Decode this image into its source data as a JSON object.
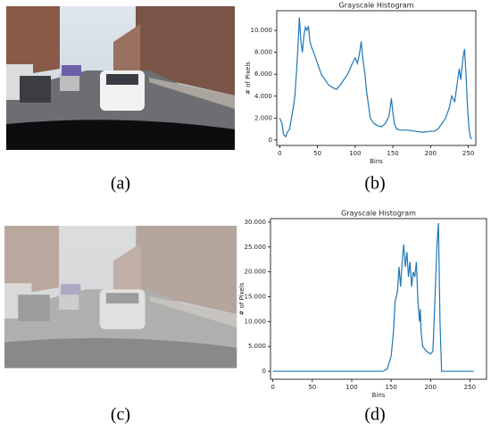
{
  "chart_data": [
    {
      "type": "line",
      "title": "Grayscale Histogram",
      "xlabel": "Bins",
      "ylabel": "# of Pixels",
      "color": "#1f77b4",
      "x": [
        0,
        3,
        5,
        8,
        10,
        13,
        15,
        18,
        20,
        22,
        24,
        26,
        28,
        30,
        32,
        34,
        36,
        38,
        40,
        42,
        45,
        50,
        55,
        60,
        65,
        70,
        75,
        80,
        85,
        90,
        95,
        100,
        103,
        106,
        108,
        110,
        113,
        115,
        118,
        120,
        125,
        130,
        135,
        140,
        145,
        148,
        150,
        152,
        155,
        160,
        170,
        180,
        190,
        200,
        205,
        210,
        215,
        220,
        225,
        228,
        232,
        235,
        238,
        240,
        243,
        245,
        247,
        249,
        251,
        253,
        255
      ],
      "y": [
        2000,
        1500,
        500,
        300,
        700,
        1000,
        1800,
        3000,
        4000,
        6000,
        8300,
        11200,
        9000,
        8000,
        9500,
        10300,
        10000,
        10400,
        9000,
        8500,
        8000,
        7000,
        6000,
        5500,
        5000,
        4800,
        4600,
        5000,
        5500,
        6000,
        6800,
        7500,
        7000,
        8000,
        9000,
        7500,
        6000,
        4500,
        3000,
        2000,
        1500,
        1300,
        1200,
        1500,
        2200,
        3800,
        2500,
        1500,
        1000,
        900,
        900,
        800,
        700,
        800,
        800,
        1000,
        1500,
        2000,
        3000,
        4000,
        3500,
        5000,
        6500,
        5500,
        7500,
        8300,
        6000,
        3000,
        1000,
        200,
        100
      ],
      "xlim": [
        -4,
        260
      ],
      "ylim": [
        -500,
        11800
      ],
      "xticks": [
        0,
        50,
        100,
        150,
        200,
        250
      ],
      "yticks": [
        0,
        {
          "value": 2000,
          "label": "2.000"
        },
        {
          "value": 4000,
          "label": "4.000"
        },
        {
          "value": 6000,
          "label": "6.000"
        },
        {
          "value": 8000,
          "label": "8.000"
        },
        {
          "value": 10000,
          "label": "10.000"
        }
      ]
    },
    {
      "type": "line",
      "title": "Grayscale Histogram",
      "xlabel": "Bins",
      "ylabel": "# of Pixels",
      "color": "#1f77b4",
      "x": [
        0,
        140,
        145,
        150,
        153,
        155,
        158,
        160,
        162,
        164,
        166,
        168,
        170,
        172,
        174,
        176,
        178,
        180,
        182,
        184,
        186,
        187,
        188,
        190,
        195,
        200,
        203,
        205,
        208,
        210,
        212,
        214,
        255
      ],
      "y": [
        0,
        0,
        500,
        3000,
        8000,
        14000,
        16000,
        21000,
        17000,
        22000,
        25500,
        21000,
        24000,
        19000,
        22000,
        17000,
        20000,
        19000,
        22000,
        14000,
        10000,
        12500,
        8000,
        5000,
        4000,
        3500,
        4000,
        12000,
        25000,
        29800,
        10000,
        0,
        0
      ],
      "xlim": [
        -3,
        271
      ],
      "ylim": [
        -1600,
        30700
      ],
      "xticks": [
        0,
        50,
        100,
        150,
        200,
        250
      ],
      "yticks": [
        0,
        {
          "value": 5000,
          "label": "5.000"
        },
        {
          "value": 10000,
          "label": "10.000"
        },
        {
          "value": 15000,
          "label": "15.000"
        },
        {
          "value": 20000,
          "label": "20.000"
        },
        {
          "value": 25000,
          "label": "25.000"
        },
        {
          "value": 30000,
          "label": "30.000"
        }
      ]
    }
  ],
  "captions": [
    "(a)",
    "(b)",
    "(c)",
    "(d)"
  ]
}
